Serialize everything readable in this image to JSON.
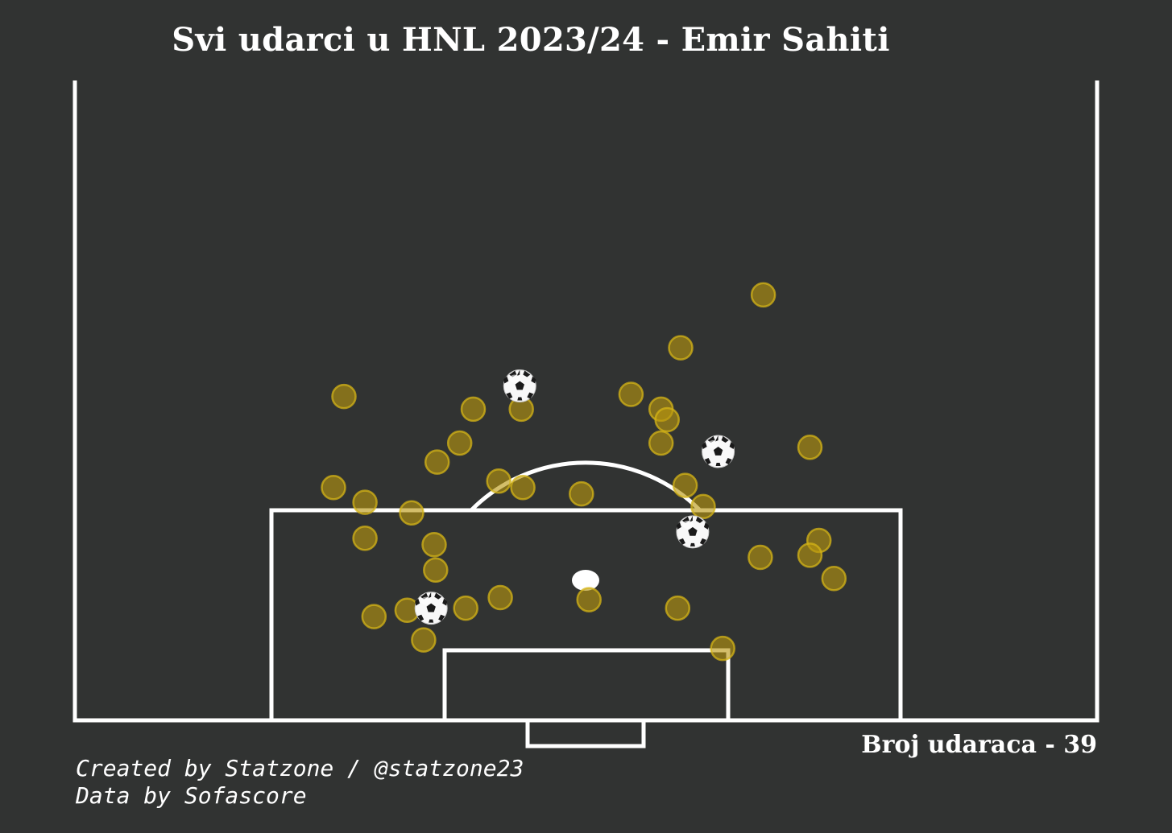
{
  "title": "Svi udarci u HNL 2023/24 - Emir Sahiti",
  "shot_count_label": "Broj udaraca - 39",
  "credits": {
    "line1": "Created by Statzone / @statzone23",
    "line2": "Data by Sofascore"
  },
  "colors": {
    "background": "#313332",
    "lines": "#ffffff",
    "shot_fill": "#b8960e",
    "shot_edge": "#d4b417",
    "goal_marker": "soccer-ball-icon"
  },
  "chart_data": {
    "type": "scatter",
    "title": "Svi udarci u HNL 2023/24 - Emir Sahiti",
    "coordinate_system": "half-pitch, x = metres from left touchline (0-68), y = metres from goal line (0-~30)",
    "xlim": [
      0,
      68
    ],
    "ylim": [
      0,
      30
    ],
    "grid": false,
    "legend": "none",
    "series": [
      {
        "values": [
          [
            45.8,
            20.1
          ],
          [
            40.3,
            17.6
          ],
          [
            17.9,
            15.3
          ],
          [
            26.5,
            14.7
          ],
          [
            29.7,
            14.7
          ],
          [
            37.0,
            15.4
          ],
          [
            39.0,
            14.7
          ],
          [
            39.4,
            14.2
          ],
          [
            25.6,
            13.1
          ],
          [
            39.0,
            13.1
          ],
          [
            48.9,
            12.9
          ],
          [
            24.1,
            12.2
          ],
          [
            17.2,
            11.0
          ],
          [
            28.2,
            11.3
          ],
          [
            29.8,
            11.0
          ],
          [
            33.7,
            10.7
          ],
          [
            40.6,
            11.1
          ],
          [
            19.3,
            10.3
          ],
          [
            22.4,
            9.8
          ],
          [
            41.8,
            10.1
          ],
          [
            19.3,
            8.6
          ],
          [
            23.9,
            8.3
          ],
          [
            49.5,
            8.5
          ],
          [
            45.6,
            7.7
          ],
          [
            48.9,
            7.8
          ],
          [
            24.0,
            7.1
          ],
          [
            50.5,
            6.7
          ],
          [
            28.3,
            5.8
          ],
          [
            34.2,
            5.7
          ],
          [
            22.1,
            5.2
          ],
          [
            26.0,
            5.3
          ],
          [
            40.1,
            5.3
          ],
          [
            19.9,
            4.9
          ],
          [
            23.2,
            3.8
          ],
          [
            43.1,
            3.4
          ]
        ]
      },
      {
        "values": [
          [
            29.6,
            15.8
          ],
          [
            42.8,
            12.7
          ],
          [
            41.1,
            8.9
          ],
          [
            23.7,
            5.3
          ]
        ]
      }
    ]
  }
}
